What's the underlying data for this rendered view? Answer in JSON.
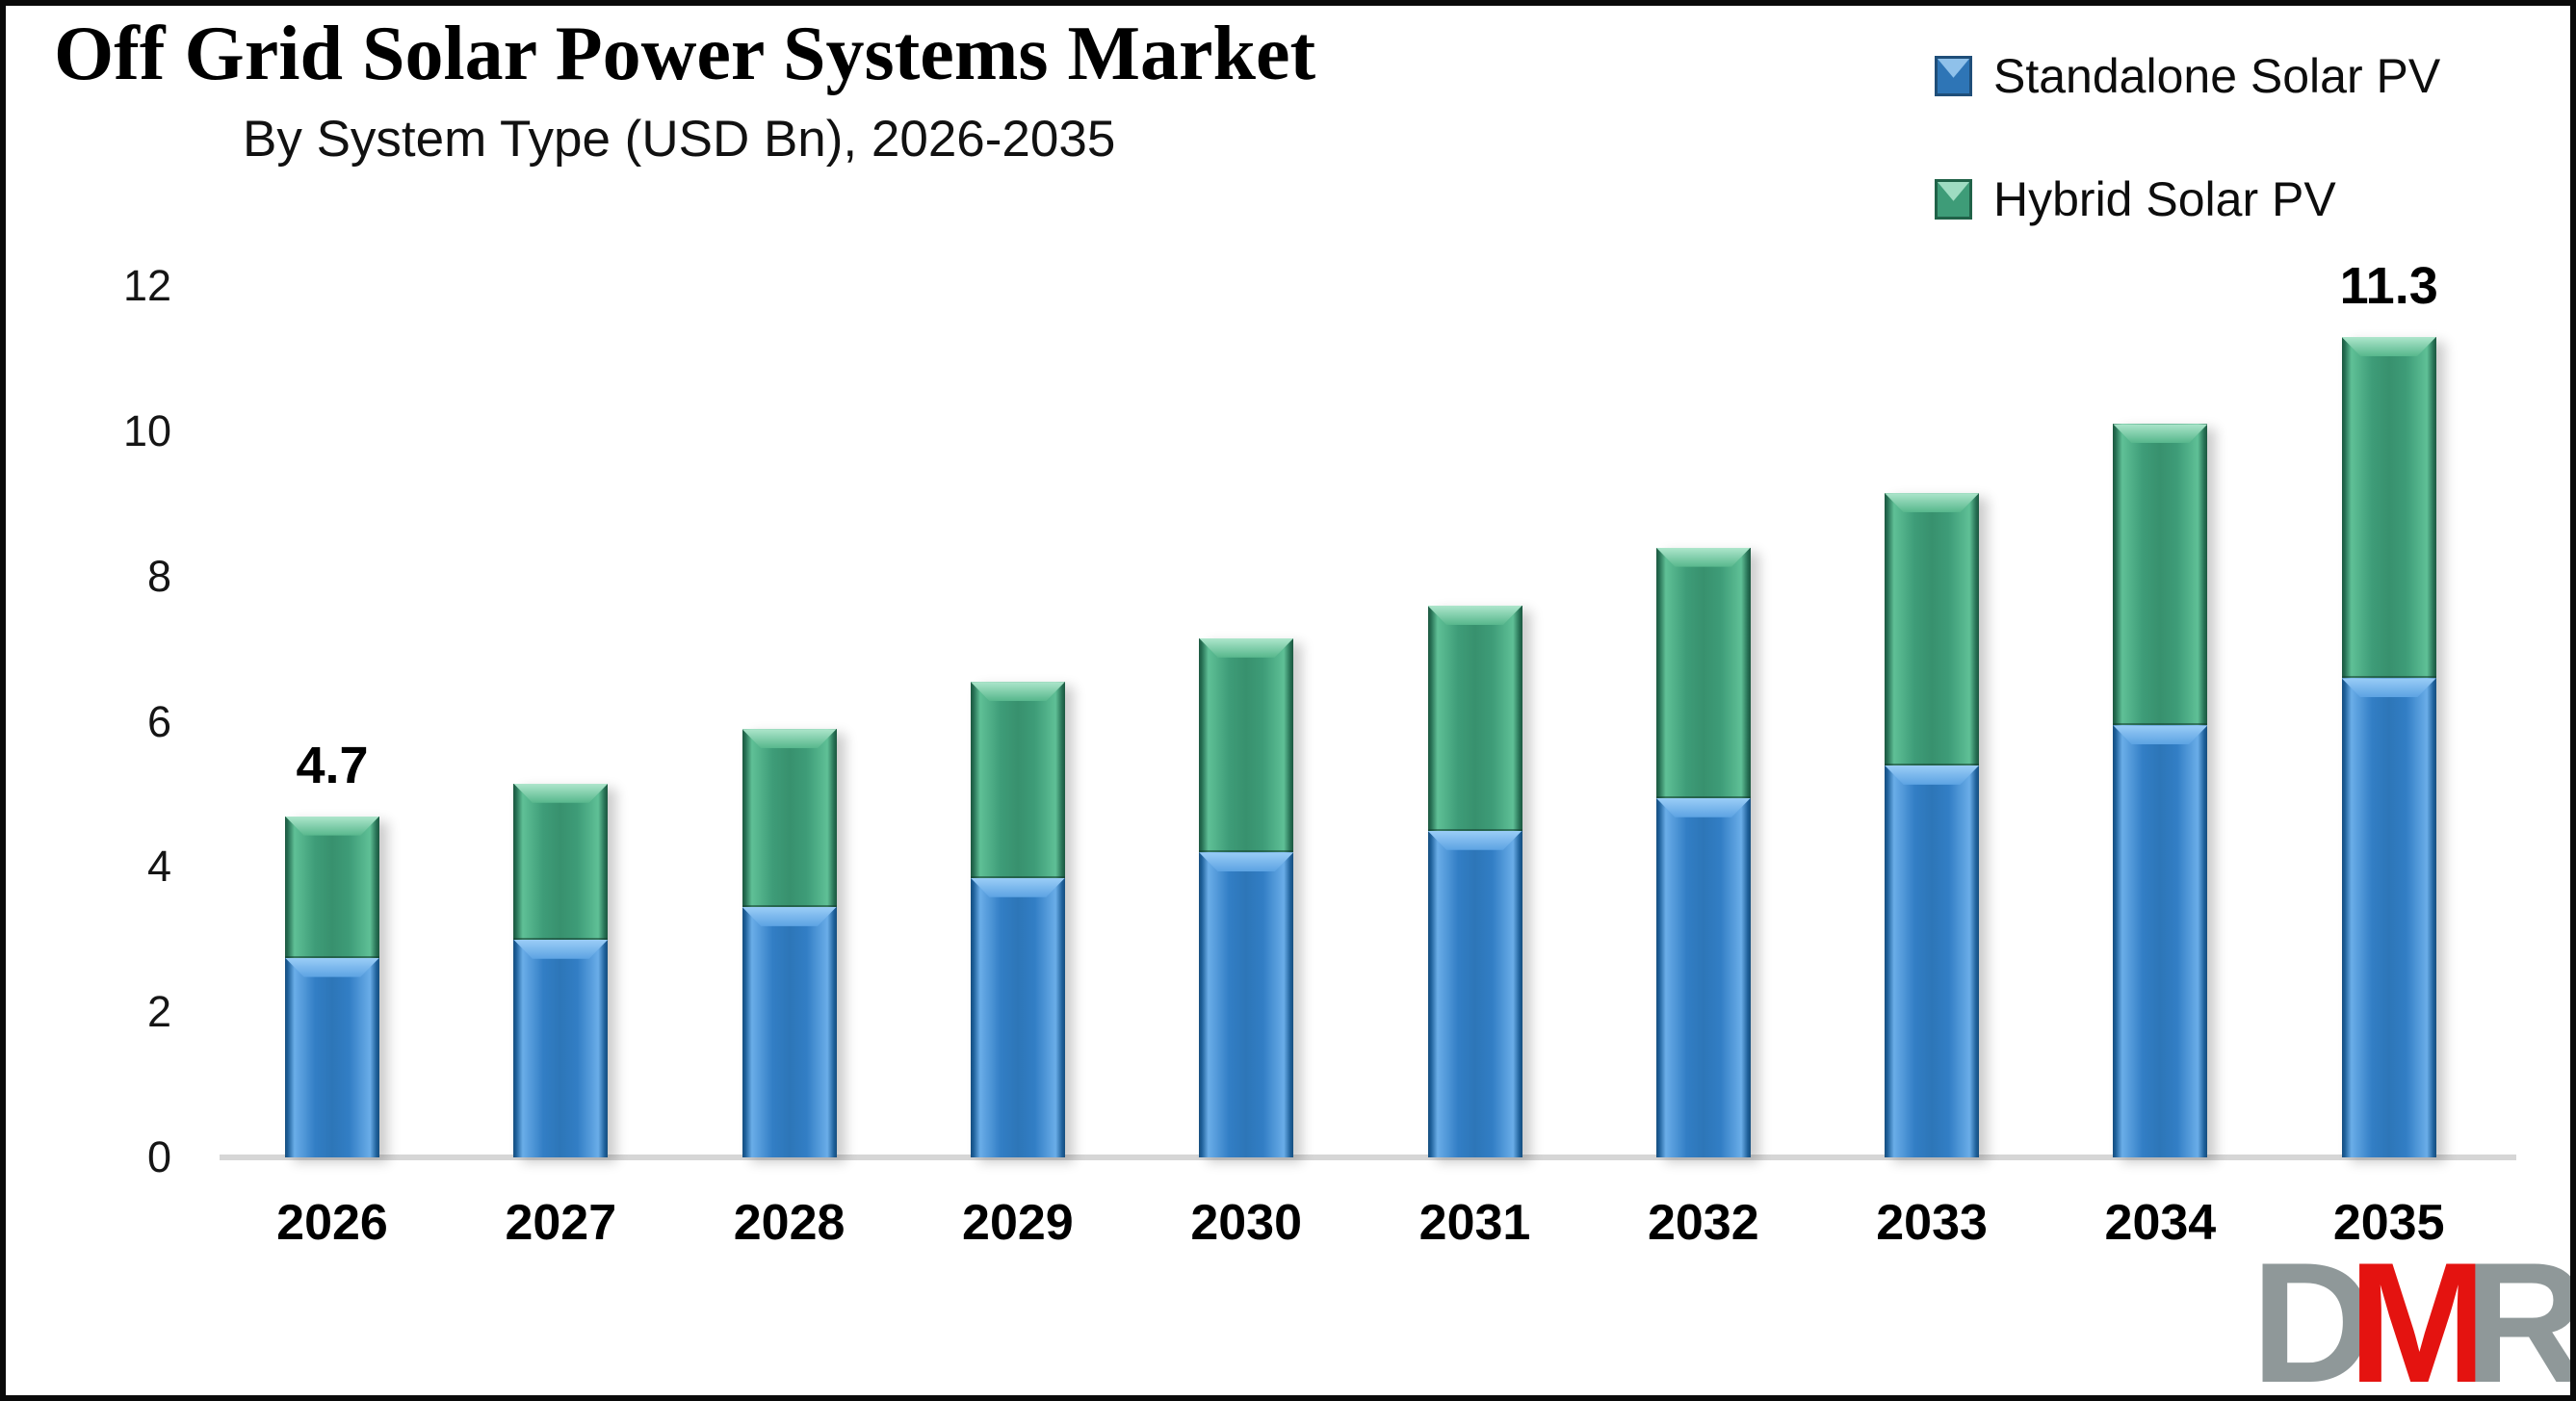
{
  "page": {
    "title": "Off Grid Solar Power Systems Market",
    "subtitle": "By System Type (USD Bn), 2026-2035"
  },
  "legend": {
    "items": [
      {
        "label": "Standalone Solar PV",
        "color": "#327EC5"
      },
      {
        "label": "Hybrid Solar PV",
        "color": "#3E9C78"
      }
    ]
  },
  "chart_data": {
    "type": "bar",
    "stacked": true,
    "title": "Off Grid Solar Power Systems Market",
    "subtitle": "By System Type (USD Bn), 2026-2035",
    "categories": [
      "2026",
      "2027",
      "2028",
      "2029",
      "2030",
      "2031",
      "2032",
      "2033",
      "2034",
      "2035"
    ],
    "series": [
      {
        "name": "Standalone Solar PV",
        "color": "#327EC5",
        "values": [
          2.75,
          3.0,
          3.45,
          3.85,
          4.2,
          4.5,
          4.95,
          5.4,
          5.95,
          6.6
        ]
      },
      {
        "name": "Hybrid Solar PV",
        "color": "#3E9C78",
        "values": [
          1.95,
          2.15,
          2.45,
          2.7,
          2.95,
          3.1,
          3.45,
          3.75,
          4.15,
          4.7
        ]
      }
    ],
    "totals": [
      4.7,
      5.15,
      5.9,
      6.55,
      7.15,
      7.6,
      8.4,
      9.15,
      10.1,
      11.3
    ],
    "data_labels": [
      {
        "category": "2026",
        "text": "4.7"
      },
      {
        "category": "2035",
        "text": "11.3"
      }
    ],
    "xlabel": "",
    "ylabel": "",
    "ylim": [
      0,
      12
    ],
    "yticks": [
      0,
      2,
      4,
      6,
      8,
      10,
      12
    ],
    "grid": false,
    "legend_position": "top-right",
    "axis_line_color": "#D6D6D6"
  },
  "logo": {
    "letters": [
      {
        "char": "D",
        "color": "#8F9899"
      },
      {
        "char": "M",
        "color": "#E41310"
      },
      {
        "char": "R",
        "color": "#8F9899"
      }
    ]
  }
}
